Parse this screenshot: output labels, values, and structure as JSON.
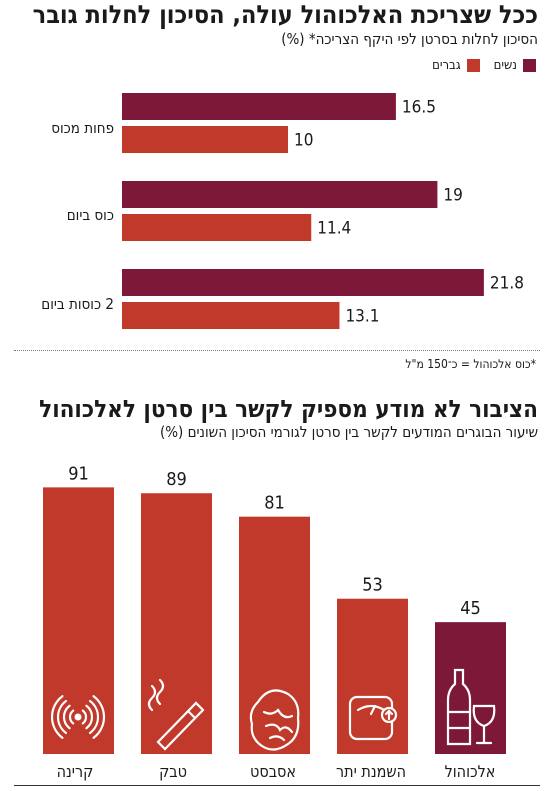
{
  "colors": {
    "women": "#7e1838",
    "men": "#c0392b",
    "text": "#1a1a1a"
  },
  "chart_data": [
    {
      "type": "bar",
      "orientation": "horizontal",
      "title": "ככל שצריכת האלכוהול עולה, הסיכון לחלות גובר",
      "subtitle": "הסיכון לחלות בסרטן לפי היקף הצריכה* (%)",
      "categories": [
        "פחות מכוס",
        "כוס ביום",
        "2 כוסות ביום"
      ],
      "series": [
        {
          "name": "נשים",
          "color": "#7e1838",
          "values": [
            16.5,
            19,
            21.8
          ]
        },
        {
          "name": "גברים",
          "color": "#c0392b",
          "values": [
            10,
            11.4,
            13.1
          ]
        }
      ],
      "value_labels": {
        "women": [
          "16.5",
          "19",
          "21.8"
        ],
        "men": [
          "10",
          "11.4",
          "13.1"
        ]
      },
      "footnote": "*כוס אלכוהול = כ־150 מ\"ל",
      "legend_position": "top-right",
      "grid": false
    },
    {
      "type": "bar",
      "orientation": "vertical",
      "title": "הציבור לא מודע מספיק לקשר בין סרטן לאלכוהול",
      "subtitle": "שיעור הבוגרים המודעים לקשר בין סרטן לגורמי הסיכון השונים (%)",
      "categories": [
        "קרינה",
        "טבק",
        "אסבסט",
        "השמנת יתר",
        "אלכוהול"
      ],
      "values": [
        91,
        89,
        81,
        53,
        45
      ],
      "value_labels": [
        "91",
        "89",
        "81",
        "53",
        "45"
      ],
      "bar_colors": [
        "#c0392b",
        "#c0392b",
        "#c0392b",
        "#c0392b",
        "#7e1838"
      ],
      "icons": [
        "radiation-waves-icon",
        "cigarette-icon",
        "asbestos-rock-icon",
        "weight-scale-icon",
        "wine-bottle-glass-icon"
      ],
      "ylim": [
        0,
        100
      ],
      "grid": false
    }
  ]
}
